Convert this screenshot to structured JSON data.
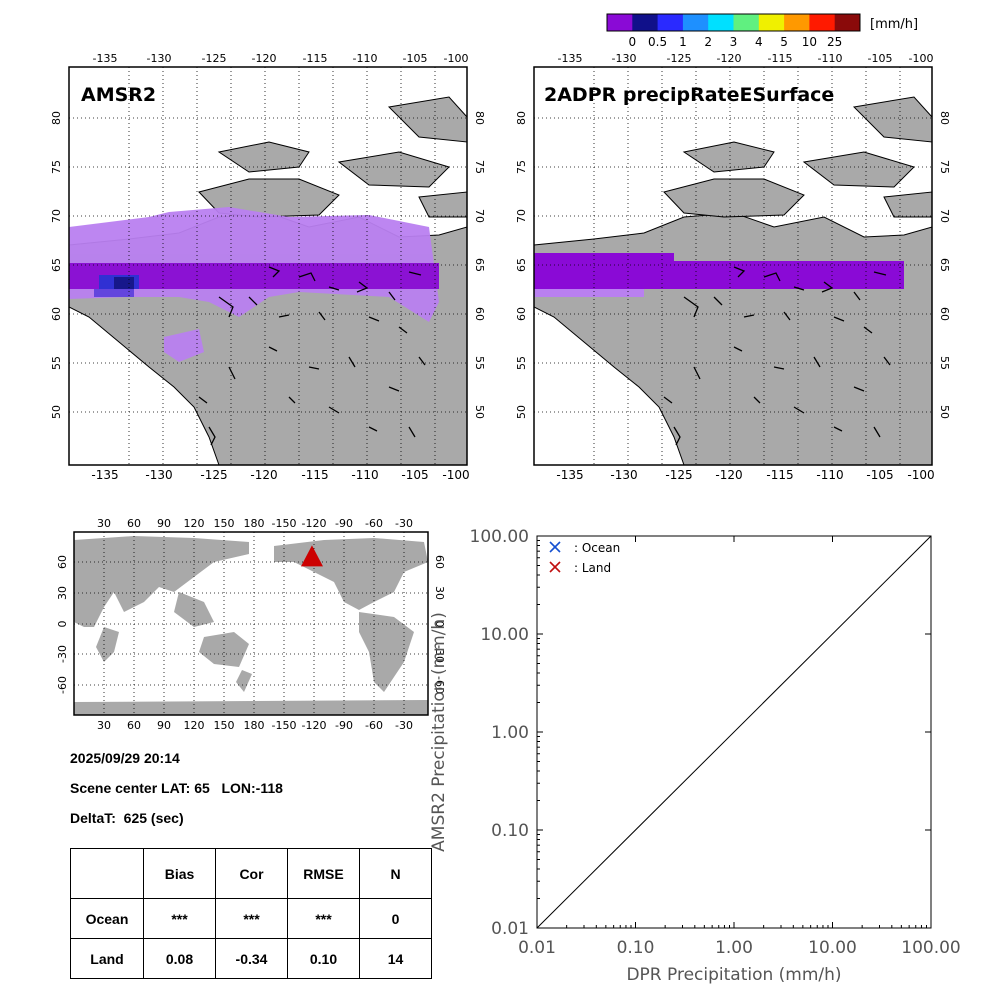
{
  "colorbar": {
    "unit": "[mm/h]",
    "ticks": [
      "0",
      "0.5",
      "1",
      "2",
      "3",
      "4",
      "5",
      "10",
      "25"
    ],
    "colors": [
      "#8a0ad6",
      "#10108a",
      "#2a2aff",
      "#1e90ff",
      "#00e0ff",
      "#60f080",
      "#f0f000",
      "#ff9900",
      "#ff1a00",
      "#8a0a0a"
    ]
  },
  "map_left": {
    "title": "AMSR2",
    "lon_ticks": [
      "-135",
      "-130",
      "-125",
      "-120",
      "-115",
      "-110",
      "-105",
      "-100"
    ],
    "lat_ticks": [
      "80",
      "75",
      "70",
      "65",
      "60",
      "55",
      "50"
    ]
  },
  "map_right": {
    "title": "2ADPR precipRateESurface",
    "lon_ticks": [
      "-135",
      "-130",
      "-125",
      "-120",
      "-115",
      "-110",
      "-105",
      "-100"
    ],
    "lat_ticks": [
      "80",
      "75",
      "70",
      "65",
      "60",
      "55",
      "50"
    ]
  },
  "world_map": {
    "lon_ticks": [
      "30",
      "60",
      "90",
      "120",
      "150",
      "180",
      "-150",
      "-120",
      "-90",
      "-60",
      "-30"
    ],
    "lat_ticks": [
      "60",
      "30",
      "0",
      "-30",
      "-60"
    ],
    "marker_lat": 65,
    "marker_lon": -118,
    "marker_color": "#cc0000"
  },
  "info": {
    "datetime": "2025/09/29 20:14",
    "scene_center": "Scene center LAT: 65   LON:-118",
    "delta_t": "DeltaT:  625 (sec)"
  },
  "stats_table": {
    "headers": [
      "",
      "Bias",
      "Cor",
      "RMSE",
      "N"
    ],
    "rows": [
      [
        "Ocean",
        "***",
        "***",
        "***",
        "0"
      ],
      [
        "Land",
        "0.08",
        "-0.34",
        "0.10",
        "14"
      ]
    ]
  },
  "chart_data": {
    "type": "scatter",
    "title": "",
    "xlabel": "DPR Precipitation (mm/h)",
    "ylabel": "AMSR2 Precipitation (mm/h)",
    "xscale": "log",
    "yscale": "log",
    "xlim": [
      0.01,
      100
    ],
    "ylim": [
      0.01,
      100
    ],
    "x_tick_labels": [
      "0.01",
      "0.10",
      "1.00",
      "10.00",
      "100.00"
    ],
    "y_tick_labels": [
      "0.01",
      "0.10",
      "1.00",
      "10.00",
      "100.00"
    ],
    "reference_line": "1:1",
    "legend": [
      {
        "label": ": Ocean",
        "marker": "x",
        "color": "#1450d0"
      },
      {
        "label": ": Land",
        "marker": "x",
        "color": "#c01010"
      }
    ],
    "series": [
      {
        "name": "Ocean",
        "points": []
      },
      {
        "name": "Land",
        "points": []
      }
    ]
  }
}
